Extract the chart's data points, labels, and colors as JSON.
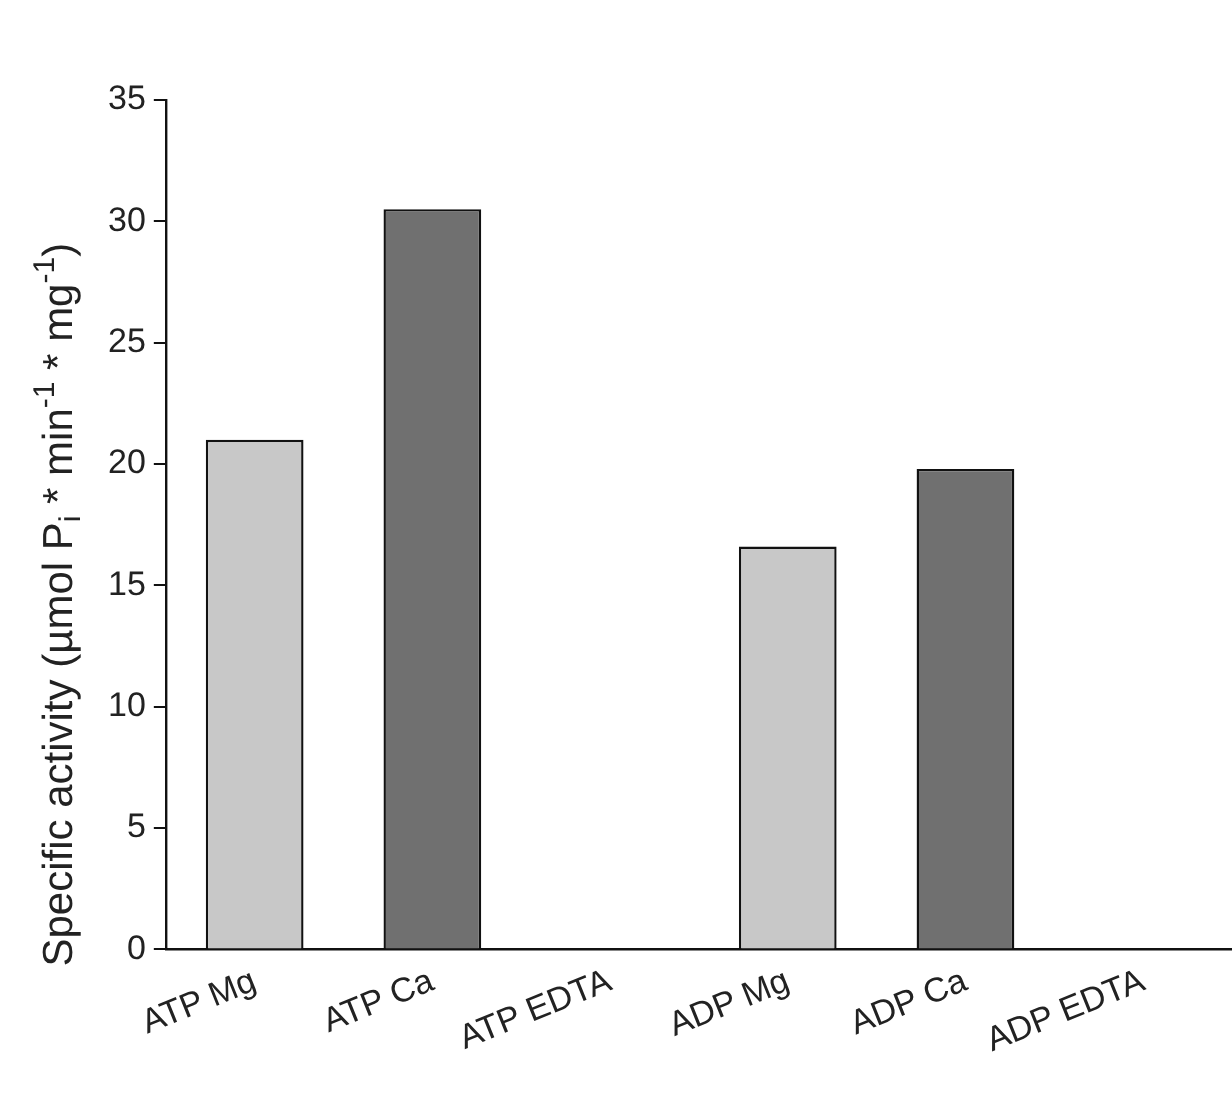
{
  "chart_data": {
    "type": "bar",
    "ylabel": "Specific activity (µmol P$_{i}$ * min$^{-1}$ * mg$^{-1}$)",
    "categories": [
      "ATP Mg",
      "ATP Ca",
      "ATP EDTA",
      "ADP Mg",
      "ADP Ca",
      "ADP EDTA"
    ],
    "values": [
      21,
      30.5,
      0,
      16.6,
      19.8,
      0
    ],
    "colors": [
      "#c8c8c8",
      "#707070",
      "#c8c8c8",
      "#c8c8c8",
      "#707070",
      "#c8c8c8"
    ],
    "ylim": [
      0,
      35
    ],
    "yticks": [
      0,
      5,
      10,
      15,
      20,
      25,
      30,
      35
    ],
    "grid": false,
    "legend": false
  }
}
